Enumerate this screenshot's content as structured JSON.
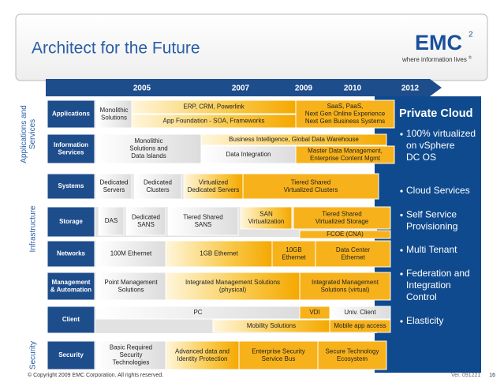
{
  "header": {
    "title": "Architect for the Future",
    "logo": {
      "name": "EMC",
      "superscript": "2",
      "tagline": "where information lives",
      "mark": "®"
    }
  },
  "timeline": {
    "years": [
      "2005",
      "2007",
      "2009",
      "2010",
      "2012"
    ]
  },
  "groups": [
    [
      "Applications and",
      "Services"
    ],
    [
      "Infrastructure"
    ],
    [
      "Security"
    ]
  ],
  "rows": [
    {
      "label": [
        "Applications"
      ],
      "items": [
        {
          "text": [
            "Monolithic",
            "Solutions"
          ]
        },
        {
          "text": [
            "ERP, CRM, Powerlink"
          ]
        },
        {
          "text": [
            "App Foundation  - SOA, Frameworks"
          ]
        },
        {
          "text": [
            "SaaS, PaaS,",
            "Next Gen Online Experience",
            "Next Gen Business Systems"
          ]
        }
      ]
    },
    {
      "label": [
        "Information",
        "Services"
      ],
      "items": [
        {
          "text": [
            "Monolithic",
            "Solutions and",
            "Data Islands"
          ]
        },
        {
          "text": [
            "Business Intelligence, Global Data Warehouse"
          ]
        },
        {
          "text": [
            "Data Integration"
          ]
        },
        {
          "text": [
            "Master Data Management,",
            "Enterprise Content Mgmt"
          ]
        }
      ]
    },
    {
      "label": [
        "Systems"
      ],
      "items": [
        {
          "text": [
            "Dedicated",
            "Servers"
          ]
        },
        {
          "text": [
            "Dedicated",
            "Clusters"
          ]
        },
        {
          "text": [
            "Virtualized",
            "Dedicated Servers"
          ]
        },
        {
          "text": [
            "Tiered Shared",
            "Virtualized Clusters"
          ]
        }
      ]
    },
    {
      "label": [
        "Storage"
      ],
      "items": [
        {
          "text": [
            "DAS"
          ]
        },
        {
          "text": [
            "Dedicated",
            "SANS"
          ]
        },
        {
          "text": [
            "Tiered Shared",
            "SANS"
          ]
        },
        {
          "text": [
            "SAN",
            "Virtualization"
          ]
        },
        {
          "text": [
            "Tiered Shared",
            "Virtualized Storage"
          ]
        },
        {
          "text": [
            "FCOE (CNA)"
          ]
        }
      ]
    },
    {
      "label": [
        "Networks"
      ],
      "items": [
        {
          "text": [
            "100M Ethernet"
          ]
        },
        {
          "text": [
            "1GB Ethernet"
          ]
        },
        {
          "text": [
            "10GB",
            "Ethernet"
          ]
        },
        {
          "text": [
            "Data Center",
            "Ethernet"
          ]
        }
      ]
    },
    {
      "label": [
        "Management",
        "& Automation"
      ],
      "items": [
        {
          "text": [
            "Point Management",
            "Solutions"
          ]
        },
        {
          "text": [
            "Integrated Management Solutions",
            "(physical)"
          ]
        },
        {
          "text": [
            "Integrated Management",
            "Solutions (virtual)"
          ]
        }
      ]
    },
    {
      "label": [
        "Client"
      ],
      "items": [
        {
          "text": [
            "PC"
          ]
        },
        {
          "text": [
            "VDI"
          ]
        },
        {
          "text": [
            "Univ. Client"
          ]
        },
        {
          "text": [
            "Mobility Solutions"
          ]
        },
        {
          "text": [
            "Mobile app access"
          ]
        }
      ]
    },
    {
      "label": [
        "Security"
      ],
      "items": [
        {
          "text": [
            "Basic Required",
            "Security",
            "Technologies"
          ]
        },
        {
          "text": [
            "Advanced data and",
            "Identity Protection"
          ]
        },
        {
          "text": [
            "Enterprise Security",
            "Service Bus"
          ]
        },
        {
          "text": [
            "Secure Technology",
            "Ecosystem"
          ]
        }
      ]
    }
  ],
  "panel": {
    "title": "Private Cloud",
    "bullets": [
      [
        "100% virtualized",
        "on vSphere",
        "DC OS"
      ],
      [
        "Cloud Services"
      ],
      [
        "Self Service",
        "Provisioning"
      ],
      [
        "Multi Tenant"
      ],
      [
        "Federation and",
        "Integration",
        "Control"
      ],
      [
        "Elasticity"
      ]
    ]
  },
  "footer": {
    "copyright": "© Copyright 2009 EMC Corporation. All rights reserved.",
    "version": "Ver. 091221",
    "page": "16"
  }
}
